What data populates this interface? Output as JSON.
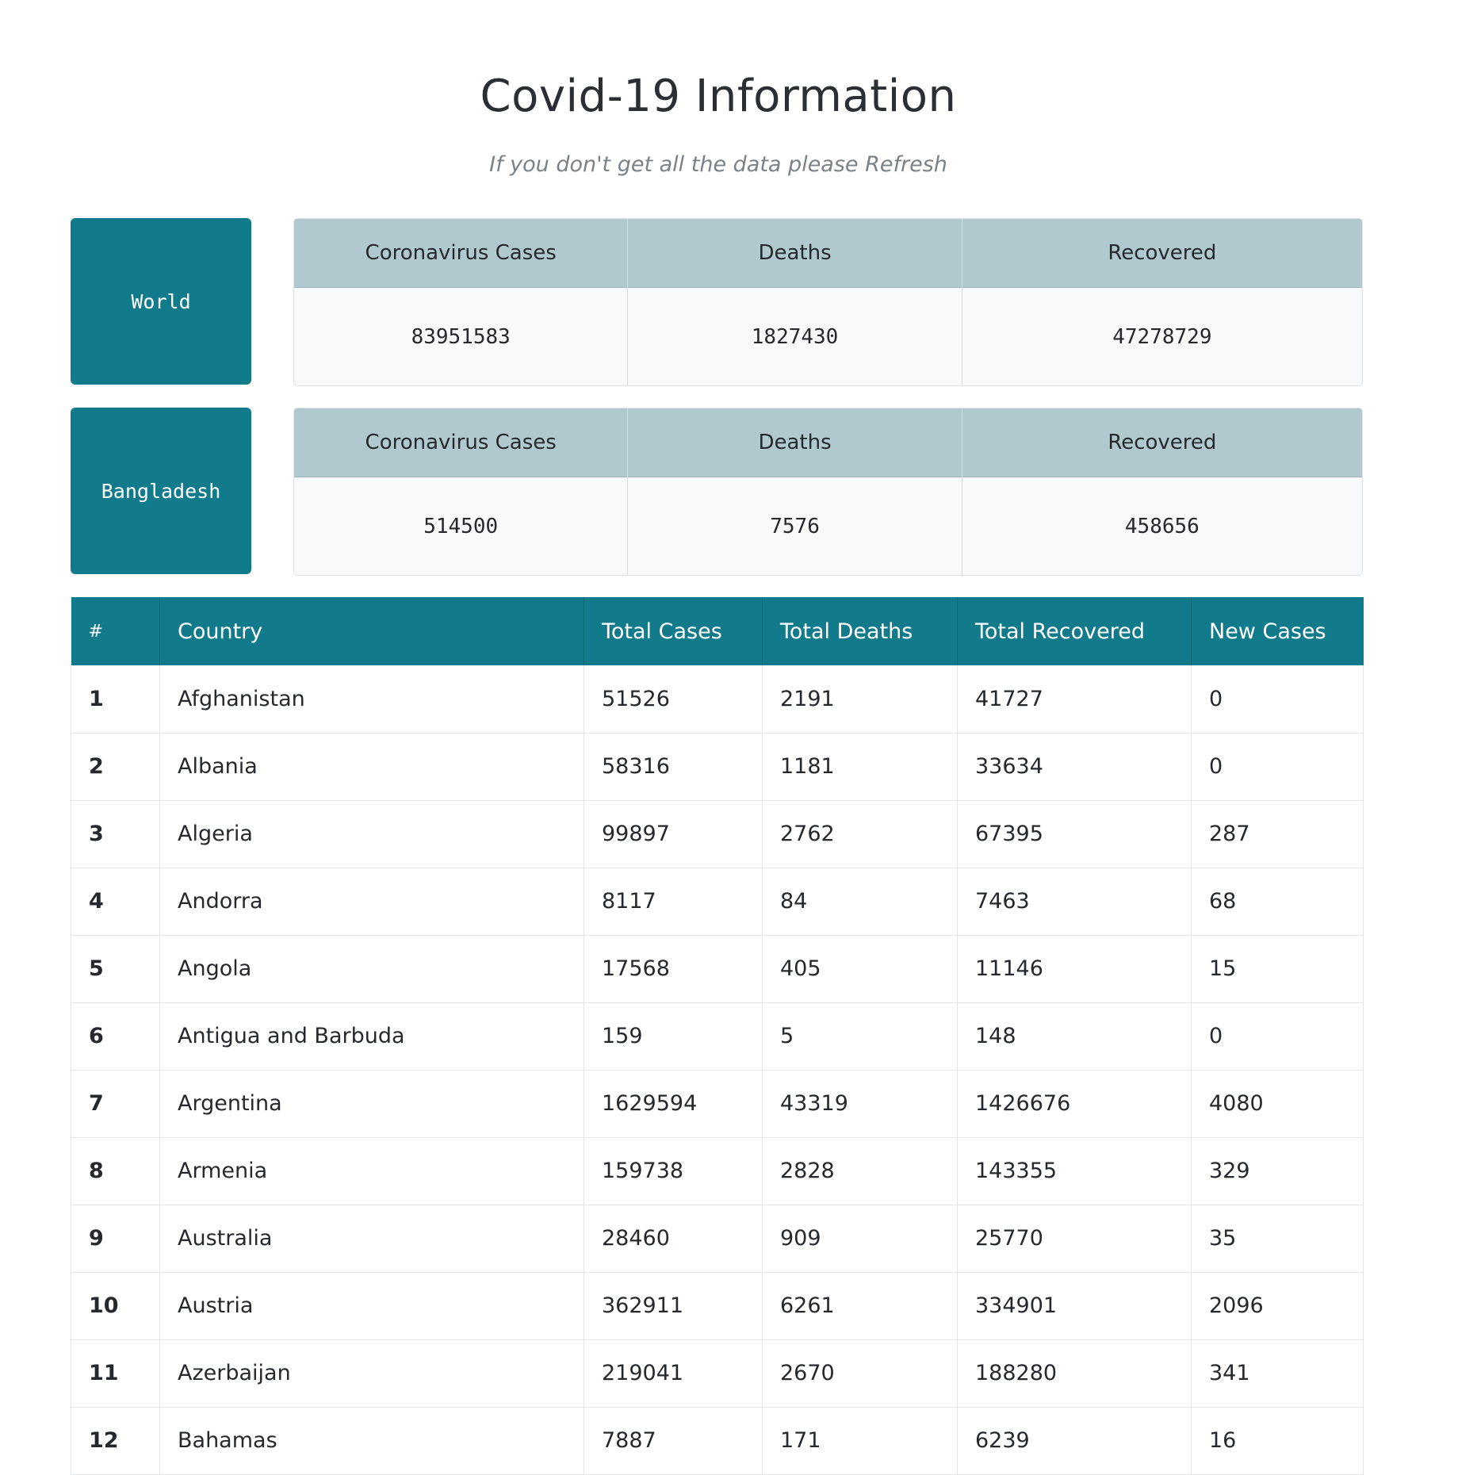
{
  "header": {
    "title": "Covid-19 Information",
    "subtitle": "If you don't get all the data please Refresh"
  },
  "summaries": {
    "world": {
      "region": "World",
      "labels": [
        "Coronavirus Cases",
        "Deaths",
        "Recovered"
      ],
      "values": [
        "83951583",
        "1827430",
        "47278729"
      ]
    },
    "bangladesh": {
      "region": "Bangladesh",
      "labels": [
        "Coronavirus Cases",
        "Deaths",
        "Recovered"
      ],
      "values": [
        "514500",
        "7576",
        "458656"
      ]
    }
  },
  "table": {
    "columns": [
      "#",
      "Country",
      "Total Cases",
      "Total Deaths",
      "Total Recovered",
      "New Cases"
    ],
    "rows": [
      [
        "1",
        "Afghanistan",
        "51526",
        "2191",
        "41727",
        "0"
      ],
      [
        "2",
        "Albania",
        "58316",
        "1181",
        "33634",
        "0"
      ],
      [
        "3",
        "Algeria",
        "99897",
        "2762",
        "67395",
        "287"
      ],
      [
        "4",
        "Andorra",
        "8117",
        "84",
        "7463",
        "68"
      ],
      [
        "5",
        "Angola",
        "17568",
        "405",
        "11146",
        "15"
      ],
      [
        "6",
        "Antigua and Barbuda",
        "159",
        "5",
        "148",
        "0"
      ],
      [
        "7",
        "Argentina",
        "1629594",
        "43319",
        "1426676",
        "4080"
      ],
      [
        "8",
        "Armenia",
        "159738",
        "2828",
        "143355",
        "329"
      ],
      [
        "9",
        "Australia",
        "28460",
        "909",
        "25770",
        "35"
      ],
      [
        "10",
        "Austria",
        "362911",
        "6261",
        "334901",
        "2096"
      ],
      [
        "11",
        "Azerbaijan",
        "219041",
        "2670",
        "188280",
        "341"
      ],
      [
        "12",
        "Bahamas",
        "7887",
        "171",
        "6239",
        "16"
      ]
    ]
  },
  "colors": {
    "accent": "#127b8b",
    "stat_header": "#b0c9ce"
  }
}
